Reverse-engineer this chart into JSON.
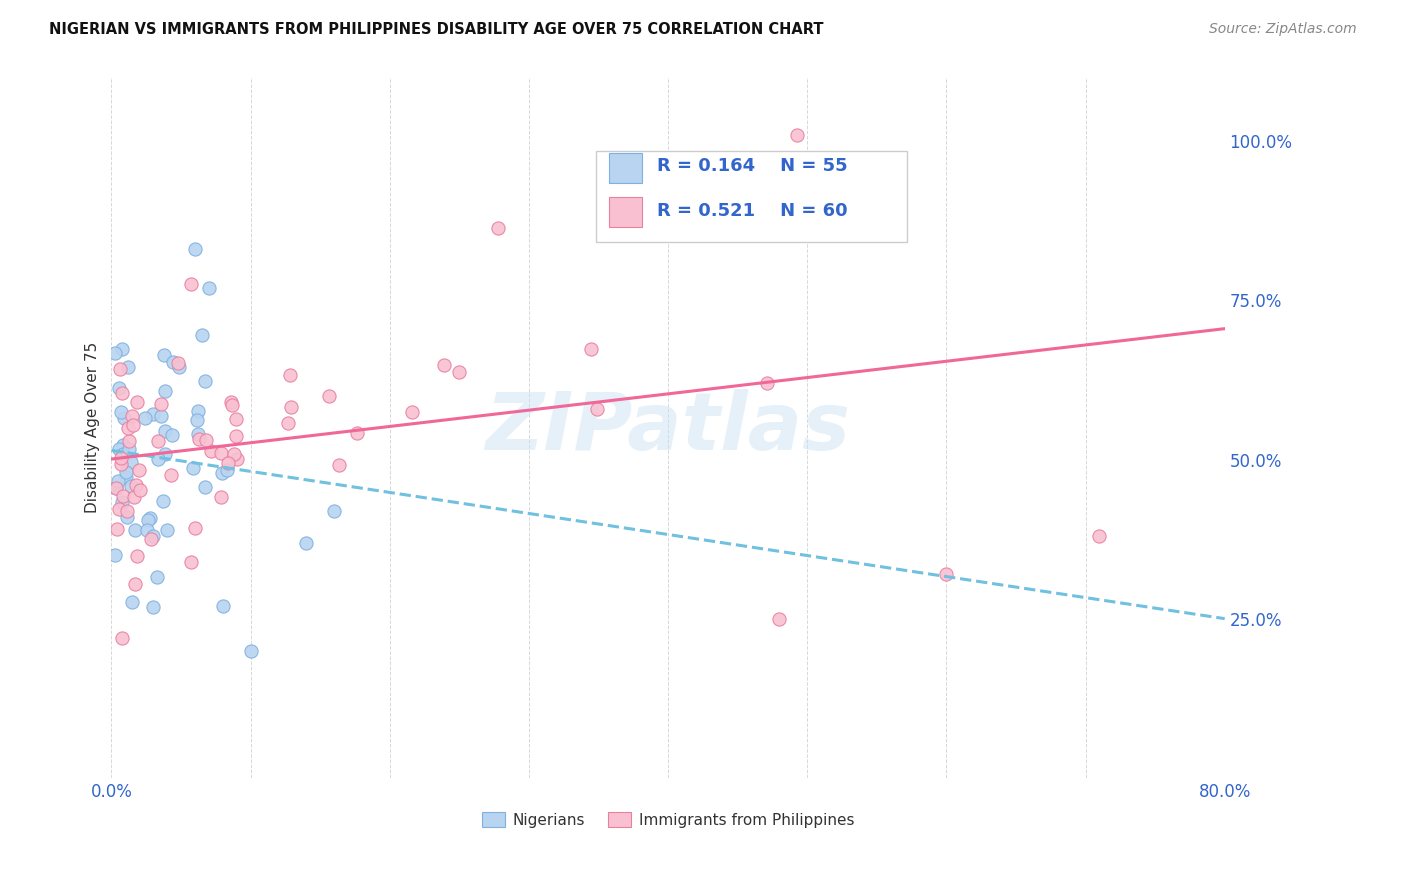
{
  "title": "NIGERIAN VS IMMIGRANTS FROM PHILIPPINES DISABILITY AGE OVER 75 CORRELATION CHART",
  "source": "Source: ZipAtlas.com",
  "ylabel": "Disability Age Over 75",
  "xlim": [
    0,
    0.8
  ],
  "ylim": [
    0,
    1.1
  ],
  "x_tick_positions": [
    0.0,
    0.1,
    0.2,
    0.3,
    0.4,
    0.5,
    0.6,
    0.7,
    0.8
  ],
  "x_tick_labels": [
    "0.0%",
    "",
    "",
    "",
    "",
    "",
    "",
    "",
    "80.0%"
  ],
  "y_tick_positions": [
    0.0,
    0.25,
    0.5,
    0.75,
    1.0
  ],
  "y_tick_labels": [
    "",
    "25.0%",
    "50.0%",
    "75.0%",
    "100.0%"
  ],
  "legend_r1": "R = 0.164",
  "legend_n1": "N = 55",
  "legend_r2": "R = 0.521",
  "legend_n2": "N = 60",
  "watermark": "ZIPatlas",
  "background_color": "#ffffff",
  "grid_color": "#d8d8d8",
  "blue_face": "#b8d4f0",
  "blue_edge": "#80b0e0",
  "pink_face": "#f8c0d0",
  "pink_edge": "#e880a0",
  "trend_blue_color": "#70c0e0",
  "trend_pink_color": "#f06898",
  "label_color": "#3366cc",
  "text_color": "#333333",
  "source_color": "#888888"
}
